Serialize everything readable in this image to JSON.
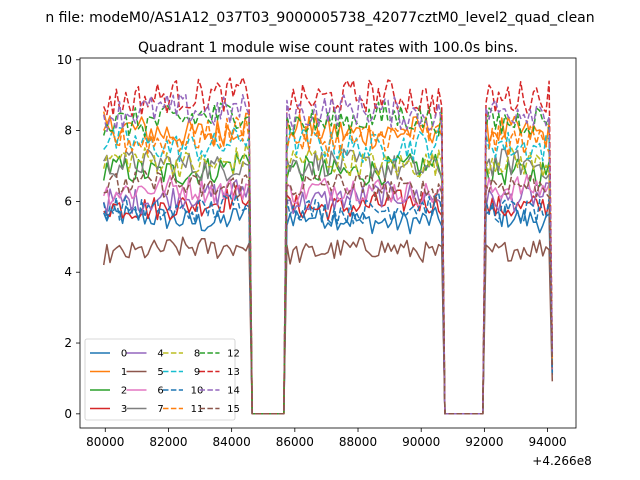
{
  "chart_data": {
    "type": "line",
    "suptitle": "n file: modeM0/AS1A12_037T03_9000005738_42077cztM0_level2_quad_clean",
    "title": "Quadrant 1 module wise count rates with 100.0s bins.",
    "xlabel": "",
    "ylabel": "",
    "x_offset_label": "+4.266e8",
    "xlim": [
      79200,
      94900
    ],
    "ylim": [
      -0.4,
      10.05
    ],
    "xticks": [
      80000,
      82000,
      84000,
      86000,
      88000,
      90000,
      92000,
      94000
    ],
    "xtick_labels": [
      "80000",
      "82000",
      "84000",
      "86000",
      "88000",
      "90000",
      "92000",
      "94000"
    ],
    "yticks": [
      0,
      2,
      4,
      6,
      8,
      10
    ],
    "ytick_labels": [
      "0",
      "2",
      "4",
      "6",
      "8",
      "10"
    ],
    "x_start": 79950,
    "x_step": 100,
    "x_end": 94150,
    "gaps": [
      [
        84650,
        85650
      ],
      [
        90750,
        91950
      ]
    ],
    "legend_location": "lower-left",
    "series": [
      {
        "name": "0",
        "color": "#1f77b4",
        "dash": "solid",
        "level": 5.5
      },
      {
        "name": "1",
        "color": "#ff7f0e",
        "dash": "solid",
        "level": 8.0
      },
      {
        "name": "2",
        "color": "#2ca02c",
        "dash": "solid",
        "level": 6.9
      },
      {
        "name": "3",
        "color": "#d62728",
        "dash": "solid",
        "level": 5.9
      },
      {
        "name": "4",
        "color": "#9467bd",
        "dash": "solid",
        "level": 6.1
      },
      {
        "name": "5",
        "color": "#8c564b",
        "dash": "solid",
        "level": 4.6
      },
      {
        "name": "6",
        "color": "#e377c2",
        "dash": "solid",
        "level": 6.3
      },
      {
        "name": "7",
        "color": "#7f7f7f",
        "dash": "solid",
        "level": 7.0
      },
      {
        "name": "8",
        "color": "#bcbd22",
        "dash": "dashed",
        "level": 7.1
      },
      {
        "name": "9",
        "color": "#17becf",
        "dash": "dashed",
        "level": 7.6
      },
      {
        "name": "10",
        "color": "#1f77b4",
        "dash": "dashed",
        "level": 5.8
      },
      {
        "name": "11",
        "color": "#ff7f0e",
        "dash": "dashed",
        "level": 7.8
      },
      {
        "name": "12",
        "color": "#2ca02c",
        "dash": "dashed",
        "level": 8.3
      },
      {
        "name": "13",
        "color": "#d62728",
        "dash": "dashed",
        "level": 8.9
      },
      {
        "name": "14",
        "color": "#9467bd",
        "dash": "dashed",
        "level": 8.5
      },
      {
        "name": "15",
        "color": "#8c564b",
        "dash": "dashed",
        "level": 6.4
      }
    ]
  }
}
